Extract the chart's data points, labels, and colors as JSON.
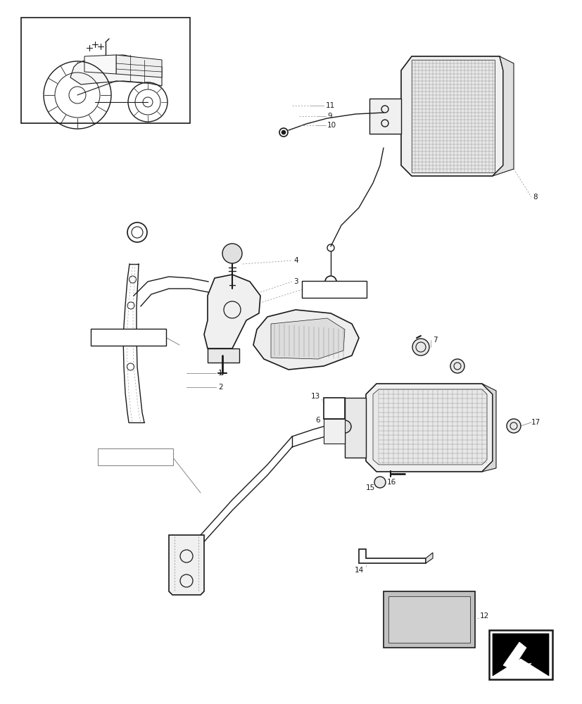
{
  "bg_color": "#ffffff",
  "line_color": "#1a1a1a",
  "gray": "#888888",
  "light_gray": "#cccccc",
  "fig_width": 8.28,
  "fig_height": 10.0,
  "dpi": 100
}
